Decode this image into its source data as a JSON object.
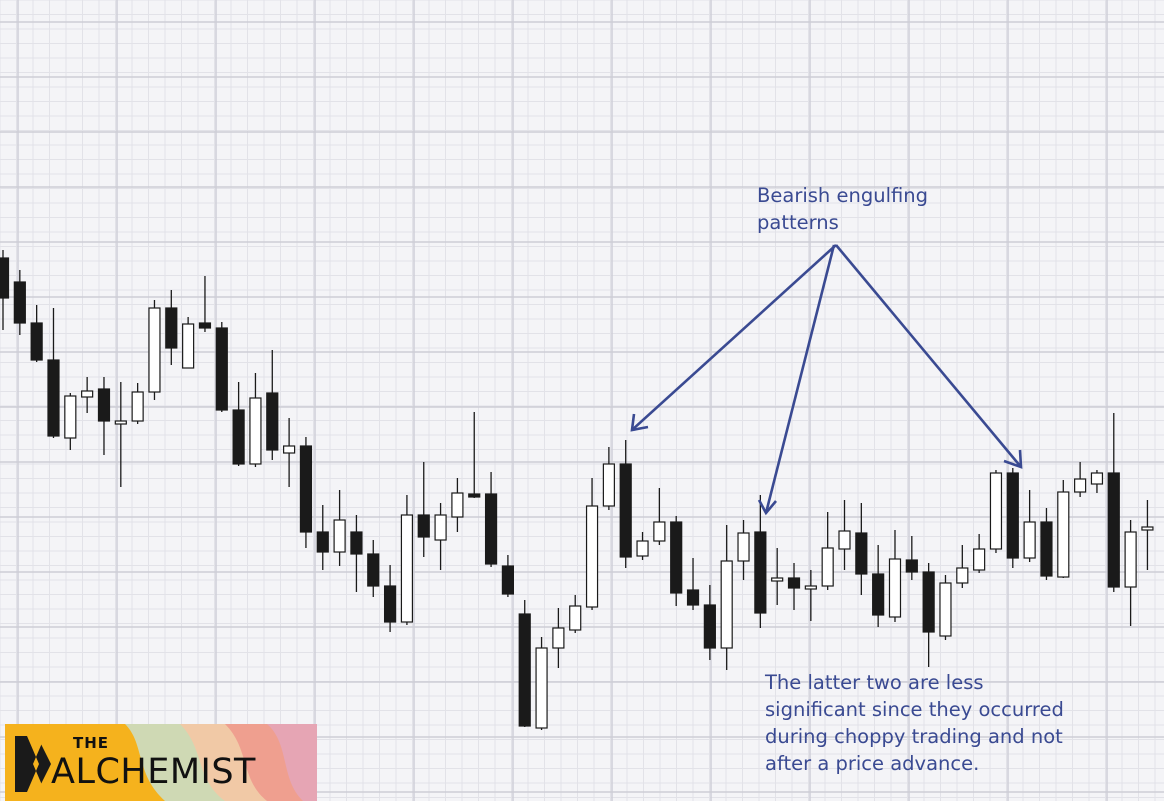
{
  "chart_data": {
    "type": "candlestick",
    "candles": [
      [
        258,
        298,
        250,
        330,
        "bear"
      ],
      [
        282,
        323,
        270,
        335,
        "bear"
      ],
      [
        323,
        360,
        305,
        362,
        "bear"
      ],
      [
        360,
        436,
        308,
        438,
        "bear"
      ],
      [
        438,
        396,
        393,
        450,
        "bull"
      ],
      [
        397,
        391,
        377,
        413,
        "bull"
      ],
      [
        389,
        421,
        377,
        455,
        "bear"
      ],
      [
        421,
        421,
        382,
        487,
        "doji"
      ],
      [
        421,
        392,
        383,
        424,
        "bull"
      ],
      [
        392,
        308,
        300,
        400,
        "bull"
      ],
      [
        308,
        348,
        290,
        365,
        "bear"
      ],
      [
        368,
        324,
        317,
        368,
        "bull"
      ],
      [
        323,
        328,
        276,
        332,
        "bear"
      ],
      [
        328,
        410,
        322,
        412,
        "bear"
      ],
      [
        410,
        464,
        382,
        466,
        "bear"
      ],
      [
        464,
        398,
        373,
        467,
        "bull"
      ],
      [
        393,
        450,
        350,
        460,
        "bear"
      ],
      [
        453,
        446,
        418,
        487,
        "bull"
      ],
      [
        446,
        532,
        437,
        548,
        "bear"
      ],
      [
        532,
        552,
        505,
        570,
        "bear"
      ],
      [
        552,
        520,
        490,
        566,
        "bull"
      ],
      [
        532,
        554,
        515,
        592,
        "bear"
      ],
      [
        554,
        586,
        540,
        597,
        "bear"
      ],
      [
        586,
        622,
        565,
        632,
        "bear"
      ],
      [
        622,
        515,
        495,
        625,
        "bull"
      ],
      [
        515,
        537,
        462,
        557,
        "bear"
      ],
      [
        540,
        515,
        503,
        570,
        "bull"
      ],
      [
        517,
        493,
        478,
        532,
        "bull"
      ],
      [
        494,
        496,
        412,
        498,
        "bear"
      ],
      [
        494,
        564,
        472,
        567,
        "bear"
      ],
      [
        566,
        594,
        555,
        597,
        "bear"
      ],
      [
        614,
        726,
        600,
        727,
        "bear"
      ],
      [
        728,
        648,
        637,
        730,
        "bull"
      ],
      [
        648,
        628,
        608,
        668,
        "bull"
      ],
      [
        630,
        606,
        595,
        633,
        "bull"
      ],
      [
        607,
        506,
        478,
        610,
        "bull"
      ],
      [
        506,
        464,
        447,
        510,
        "bull"
      ],
      [
        464,
        557,
        440,
        568,
        "bear"
      ],
      [
        556,
        541,
        532,
        560,
        "bull"
      ],
      [
        541,
        522,
        488,
        545,
        "bull"
      ],
      [
        522,
        593,
        516,
        606,
        "bear"
      ],
      [
        590,
        605,
        558,
        610,
        "bear"
      ],
      [
        605,
        648,
        585,
        660,
        "bear"
      ],
      [
        648,
        561,
        525,
        670,
        "bull"
      ],
      [
        561,
        533,
        520,
        580,
        "bull"
      ],
      [
        532,
        613,
        495,
        628,
        "bear"
      ],
      [
        578,
        578,
        548,
        605,
        "doji"
      ],
      [
        578,
        588,
        563,
        610,
        "bear"
      ],
      [
        588,
        586,
        570,
        621,
        "bull"
      ],
      [
        586,
        548,
        512,
        590,
        "bull"
      ],
      [
        549,
        531,
        500,
        570,
        "bull"
      ],
      [
        533,
        574,
        503,
        595,
        "bear"
      ],
      [
        574,
        615,
        545,
        627,
        "bear"
      ],
      [
        617,
        559,
        530,
        622,
        "bull"
      ],
      [
        560,
        572,
        536,
        580,
        "bear"
      ],
      [
        572,
        632,
        563,
        667,
        "bear"
      ],
      [
        636,
        583,
        575,
        640,
        "bull"
      ],
      [
        583,
        568,
        545,
        588,
        "bull"
      ],
      [
        570,
        549,
        534,
        573,
        "bull"
      ],
      [
        549,
        473,
        470,
        553,
        "bull"
      ],
      [
        473,
        558,
        468,
        568,
        "bear"
      ],
      [
        558,
        522,
        490,
        562,
        "bull"
      ],
      [
        522,
        576,
        508,
        580,
        "bear"
      ],
      [
        577,
        492,
        480,
        578,
        "bull"
      ],
      [
        492,
        479,
        462,
        497,
        "bull"
      ],
      [
        484,
        473,
        470,
        493,
        "bull"
      ],
      [
        473,
        587,
        413,
        592,
        "bear"
      ],
      [
        587,
        532,
        520,
        626,
        "bull"
      ],
      [
        530,
        527,
        500,
        570,
        "bull"
      ]
    ]
  },
  "annotations": {
    "top_lines": [
      "Bearish engulfing",
      "patterns"
    ],
    "bottom_lines": [
      "The latter two are less",
      "significant since they occurred",
      "during choppy trading and not",
      "after a price advance."
    ]
  },
  "logo": {
    "word1": "THE",
    "word2": "ALCHEMIST"
  },
  "colors": {
    "bear": "#1a1a1a",
    "bull": "#ffffff",
    "outline": "#1a1a1a",
    "arrow": "#3a4a92",
    "grid_major": "#cdcdd6",
    "grid_minor": "#e2e2e8",
    "logo_bg": "#f5b21d"
  }
}
